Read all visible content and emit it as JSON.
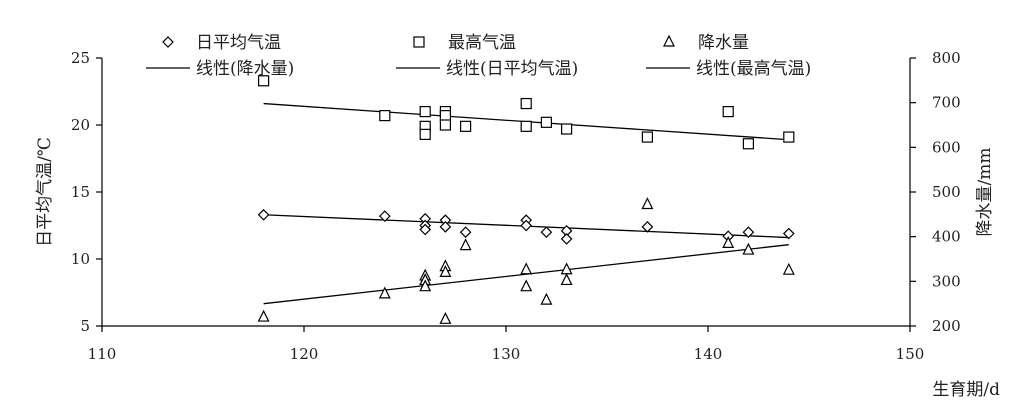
{
  "chart_data": {
    "type": "scatter",
    "xlabel": "生育期/d",
    "ylabel": "日平均气温/℃",
    "y2label": "降水量/mm",
    "xlim": [
      110,
      150
    ],
    "ylim": [
      5,
      25
    ],
    "y2lim": [
      200,
      800
    ],
    "xticks": [
      110,
      120,
      130,
      140,
      150
    ],
    "yticks": [
      5,
      10,
      15,
      20,
      25
    ],
    "y2ticks": [
      200,
      300,
      400,
      500,
      600,
      700,
      800
    ],
    "grid": false,
    "legend_position": "top",
    "series": [
      {
        "name": "日平均气温",
        "marker": "diamond",
        "axis": "left",
        "points": [
          [
            118,
            13.3
          ],
          [
            124,
            13.2
          ],
          [
            126,
            13.0
          ],
          [
            126,
            12.5
          ],
          [
            126,
            12.2
          ],
          [
            127,
            12.9
          ],
          [
            127,
            12.4
          ],
          [
            128,
            12.0
          ],
          [
            131,
            12.9
          ],
          [
            131,
            12.5
          ],
          [
            132,
            12.0
          ],
          [
            133,
            12.1
          ],
          [
            133,
            11.5
          ],
          [
            137,
            12.4
          ],
          [
            141,
            11.7
          ],
          [
            142,
            12.0
          ],
          [
            144,
            11.9
          ]
        ]
      },
      {
        "name": "最高气温",
        "marker": "square",
        "axis": "left",
        "points": [
          [
            118,
            23.3
          ],
          [
            124,
            20.7
          ],
          [
            126,
            21.0
          ],
          [
            126,
            19.9
          ],
          [
            126,
            19.3
          ],
          [
            127,
            21.0
          ],
          [
            127,
            20.7
          ],
          [
            127,
            20.0
          ],
          [
            128,
            19.9
          ],
          [
            131,
            21.6
          ],
          [
            131,
            19.9
          ],
          [
            132,
            20.2
          ],
          [
            133,
            19.7
          ],
          [
            137,
            19.1
          ],
          [
            141,
            21.0
          ],
          [
            142,
            18.6
          ],
          [
            144,
            19.1
          ]
        ]
      },
      {
        "name": "降水量",
        "marker": "triangle",
        "axis": "right",
        "points": [
          [
            118,
            220
          ],
          [
            124,
            272
          ],
          [
            126,
            312
          ],
          [
            126,
            302
          ],
          [
            126,
            288
          ],
          [
            127,
            333
          ],
          [
            127,
            320
          ],
          [
            127,
            215
          ],
          [
            128,
            380
          ],
          [
            131,
            326
          ],
          [
            131,
            288
          ],
          [
            132,
            258
          ],
          [
            133,
            326
          ],
          [
            133,
            302
          ],
          [
            137,
            472
          ],
          [
            141,
            385
          ],
          [
            142,
            370
          ],
          [
            144,
            325
          ]
        ]
      }
    ],
    "trendlines": [
      {
        "name": "线性(降水量)",
        "axis": "right",
        "x": [
          118,
          144
        ],
        "y": [
          250,
          382
        ]
      },
      {
        "name": "线性(日平均气温)",
        "axis": "left",
        "x": [
          118,
          144
        ],
        "y": [
          13.3,
          11.6
        ]
      },
      {
        "name": "线性(最高气温)",
        "axis": "left",
        "x": [
          118,
          144
        ],
        "y": [
          21.6,
          18.9
        ]
      }
    ],
    "legend": {
      "row1": [
        "日平均气温",
        "最高气温",
        "降水量"
      ],
      "row2": [
        "线性",
        "(降水量)",
        "线性",
        "(日平均气温)",
        "线性",
        "(最高气温)"
      ]
    }
  }
}
